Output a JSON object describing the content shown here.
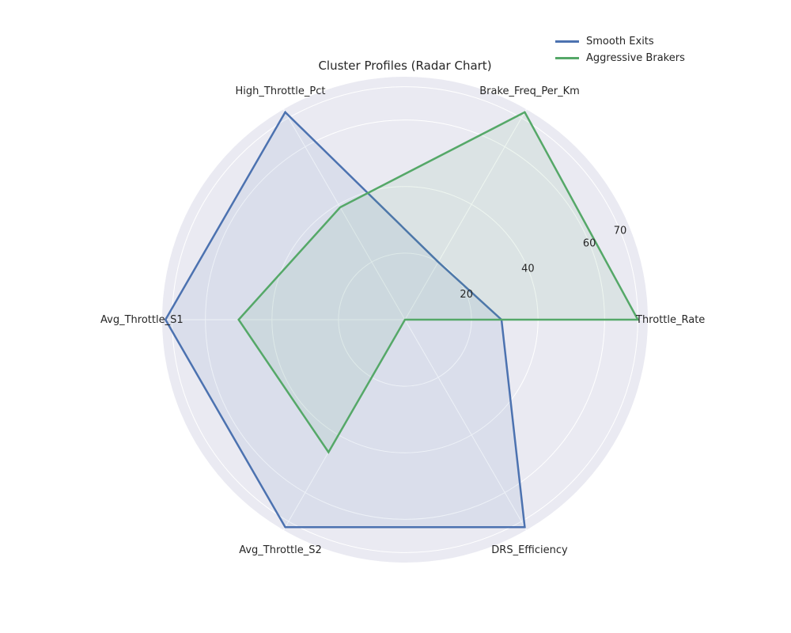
{
  "chart_data": {
    "type": "radar",
    "title": "Cluster Profiles (Radar Chart)",
    "axes": [
      "Throttle_Rate",
      "Brake_Freq_Per_Km",
      "High_Throttle_Pct",
      "Avg_Throttle_S1",
      "Avg_Throttle_S2",
      "DRS_Efficiency"
    ],
    "rlim": [
      0,
      73
    ],
    "radial_ticks": [
      20,
      40,
      60,
      70
    ],
    "grid": true,
    "legend_position": "top-right",
    "series": [
      {
        "name": "Smooth Exits",
        "color": "#4c72b0",
        "values": [
          29,
          20,
          72,
          72,
          72,
          72
        ]
      },
      {
        "name": "Aggressive Brakers",
        "color": "#55a868",
        "values": [
          70,
          72,
          39,
          50,
          46,
          0
        ]
      }
    ]
  }
}
